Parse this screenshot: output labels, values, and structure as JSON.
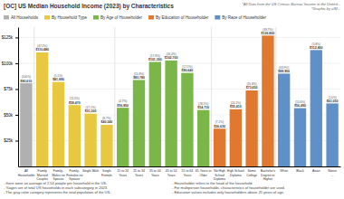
{
  "chart_data": {
    "type": "bar",
    "title": "[OC] US Median Household Income (2023) by Characteristics",
    "source_notes": [
      "*All Data from the US Census Bureau 'Income in the United...",
      "*Graphic by u/M..."
    ],
    "footnotes": [
      "- there were an average of 2.54 people per household in the US.\n- %ages are of total US households in each subcategory in 2023.\n- The gray color category represents the total population of the US.",
      "- Householder refers to the head of the household.\n- For multiperson households, characteristics of householder are used.\n- Education values includes only householders above 25 years of age."
    ],
    "legend": "upper left",
    "legend_labels": [
      "All Households",
      "By Household Type",
      "By Age of Householder",
      "By Education of Householder",
      "By Race of Householder"
    ],
    "legend_colors": [
      "#b0b0b0",
      "#e8c840",
      "#7ab648",
      "#e07830",
      "#6090c8"
    ],
    "categories": [
      "All\nHouseholds",
      "Family\nMarried\nCouples",
      "Family-\nMales no\nSpouse",
      "Family-\nFemales no\nSpouse",
      "Single Male",
      "Single\nFemale",
      "15 to 24\nYears",
      "25 to 34\nYears",
      "35 to 44\nYears",
      "45 to 54\nYears",
      "55 to 64\nYears",
      "65 Years or\nOlder",
      "No High\nSchool\nDiploma",
      "High School\nDiploma",
      "Some\nCollege",
      "Bachelor's\nDegree or\nHigher",
      "White",
      "Black",
      "Asian",
      "Native\n..."
    ],
    "values": [
      80610,
      110480,
      81890,
      59470,
      51200,
      40340,
      56850,
      83780,
      101300,
      102700,
      90640,
      54710,
      36630,
      55410,
      73650,
      126800,
      89950,
      56490,
      112800,
      61050
    ],
    "value_labels": [
      "$80,610",
      "$110,480",
      "$81,890",
      "$59,470",
      "$51,200",
      "$40,340",
      "$56,850",
      "$83,780",
      "$101,300",
      "$102,700",
      "$90,640",
      "$54,710",
      "$36,630",
      "$55,410",
      "$73,650",
      "$126,800",
      "$89,950",
      "$56,490",
      "$112,800",
      "$61,050"
    ],
    "share_labels": [
      "(100%)",
      "(47.2%)",
      "(5.5%)",
      "(11.5%)",
      "(17.1%)",
      "(8.7%)",
      "(4.7%)",
      "(15.8%)",
      "(17.8%)",
      "(16.4%)",
      "(17.1%)",
      "(28.5%)",
      "(7.2%)",
      "(24.1%)",
      "(25.8%)",
      "(38.7%)",
      "(63.9%)",
      "(13.6%)",
      "(5.8%)",
      "(2.0%)"
    ],
    "colors": [
      "#b0b0b0",
      "#e8c840",
      "#e8c840",
      "#e8c840",
      "#e8c840",
      "#e8c840",
      "#7ab648",
      "#7ab648",
      "#7ab648",
      "#7ab648",
      "#7ab648",
      "#7ab648",
      "#e07830",
      "#e07830",
      "#e07830",
      "#e07830",
      "#6090c8",
      "#6090c8",
      "#6090c8",
      "#6090c8"
    ],
    "data_labels": true,
    "ylim": [
      0,
      135000
    ],
    "yticks": [
      {
        "value": 25000,
        "label": "$25k"
      },
      {
        "value": 50000,
        "label": "$50k"
      },
      {
        "value": 75000,
        "label": "$75k"
      },
      {
        "value": 100000,
        "label": "$100k"
      },
      {
        "value": 125000,
        "label": "$125k"
      }
    ],
    "grid": true
  }
}
